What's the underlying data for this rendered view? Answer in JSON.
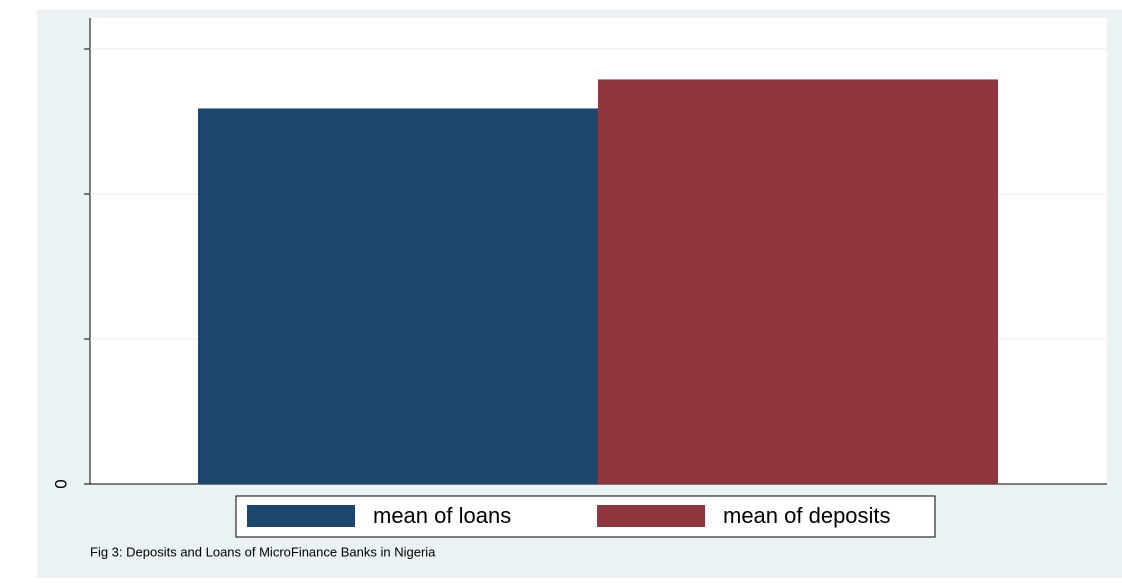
{
  "chart_data": {
    "type": "bar",
    "series": [
      {
        "name": "mean of loans",
        "color": "#1c466e",
        "values": [
          2.59
        ]
      },
      {
        "name": "mean of deposits",
        "color": "#8f353e",
        "values": [
          2.79
        ]
      }
    ],
    "ylim": [
      0,
      3.2
    ],
    "yticks": [
      0,
      {
        "value": 1,
        "label": null
      },
      {
        "value": 2,
        "label": null
      },
      {
        "value": 3,
        "label": null
      }
    ],
    "grid": true,
    "legend": "bottom",
    "note": "Fig 3: Deposits and Loans of MicroFinance Banks in Nigeria"
  }
}
